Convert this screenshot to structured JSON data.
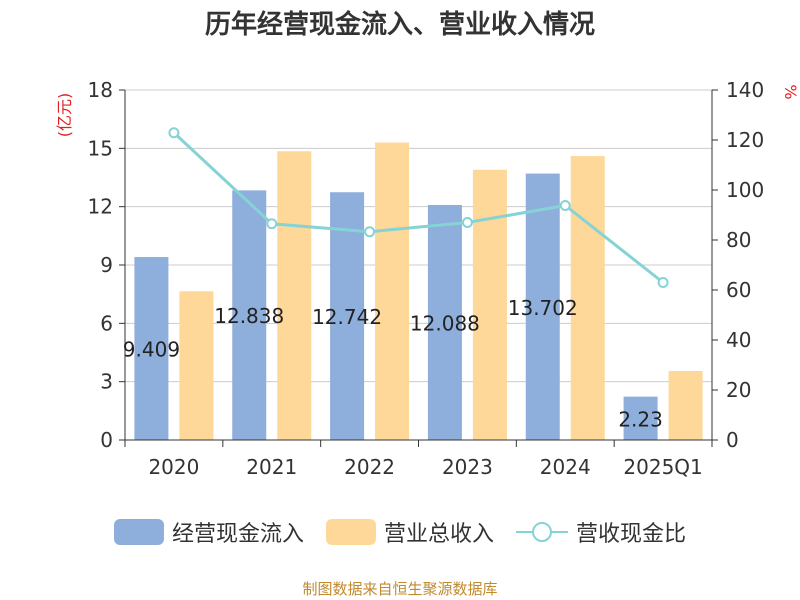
{
  "chart_data": {
    "type": "bar",
    "title": "历年经营现金流入、营业收入情况",
    "categories": [
      "2020",
      "2021",
      "2022",
      "2023",
      "2024",
      "2025Q1"
    ],
    "ylabel_left": "(亿元)",
    "ylabel_right": "%",
    "ylim_left": [
      0,
      18
    ],
    "yticks_left": [
      "0",
      "3",
      "6",
      "9",
      "12",
      "15",
      "18"
    ],
    "ylim_right": [
      0,
      140
    ],
    "yticks_right": [
      "0",
      "20",
      "40",
      "60",
      "80",
      "100",
      "120",
      "140"
    ],
    "grid": true,
    "legend_position": "bottom",
    "series": [
      {
        "name": "经营现金流入",
        "kind": "bar",
        "axis": "left",
        "color": "#8eaedc",
        "values": [
          9.409,
          12.838,
          12.742,
          12.088,
          13.702,
          2.23
        ],
        "labels": [
          "9.409",
          "12.838",
          "12.742",
          "12.088",
          "13.702",
          "2.23"
        ]
      },
      {
        "name": "营业总收入",
        "kind": "bar",
        "axis": "left",
        "color": "#fdd898",
        "values": [
          7.65,
          14.85,
          15.3,
          13.9,
          14.6,
          3.55
        ]
      },
      {
        "name": "营收现金比",
        "kind": "line",
        "axis": "right",
        "color": "#86d3d6",
        "values": [
          122.9,
          86.5,
          83.3,
          87.0,
          93.8,
          63.0
        ]
      }
    ]
  },
  "source_note": "制图数据来自恒生聚源数据库"
}
